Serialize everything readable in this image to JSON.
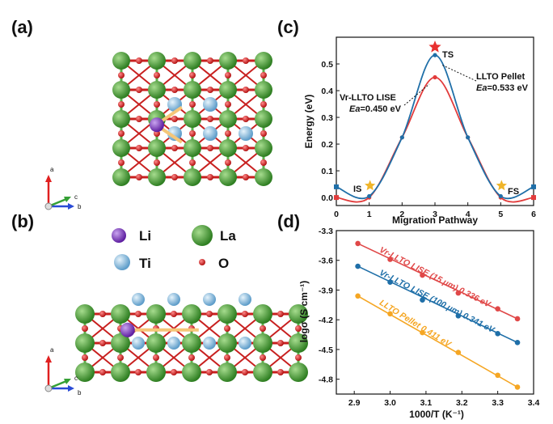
{
  "panel_labels": {
    "a": "(a)",
    "b": "(b)",
    "c": "(c)",
    "d": "(d)"
  },
  "legend": {
    "li": "Li",
    "la": "La",
    "ti": "Ti",
    "o": "O",
    "colors": {
      "li": "#7d2fc2",
      "la": "#3f9b2e",
      "ti": "#7fb8de",
      "o": "#d62222"
    }
  },
  "crystal_axes": {
    "a": "a",
    "b": "b",
    "c": "c"
  },
  "chart_data": [
    {
      "type": "line",
      "id": "c",
      "xlabel": "Migration Pathway",
      "ylabel": "Energy (eV)",
      "xlim": [
        0,
        6
      ],
      "ylim": [
        -0.03,
        0.6
      ],
      "xticks": [
        "0",
        "1",
        "2",
        "3",
        "4",
        "5",
        "6"
      ],
      "yticks": [
        "0.0",
        "0.1",
        "0.2",
        "0.3",
        "0.4",
        "0.5"
      ],
      "series": [
        {
          "name": "LLTO Pellet",
          "color": "#1f6fa8",
          "x": [
            0,
            1,
            2,
            3,
            4,
            5,
            6
          ],
          "y": [
            0.04,
            0.005,
            0.225,
            0.533,
            0.225,
            0.005,
            0.04
          ]
        },
        {
          "name": "Vr-LLTO LISE",
          "color": "#e23b3b",
          "x": [
            0,
            1,
            2,
            3,
            4,
            5,
            6
          ],
          "y": [
            0.0,
            0.0,
            0.225,
            0.45,
            0.225,
            0.0,
            0.0
          ]
        }
      ],
      "annotations": {
        "ts": "TS",
        "is": "IS",
        "fs": "FS",
        "pellet_name": "LLTO Pellet",
        "pellet_ea": "Ea=0.533 eV",
        "lise_name": "Vr-LLTO LISE",
        "lise_ea": "Ea=0.450 eV",
        "ea_prefix": "Ea",
        "pellet_ea_val": "=0.533 eV",
        "lise_ea_val": "=0.450 eV"
      }
    },
    {
      "type": "scatter",
      "id": "d",
      "xlabel": "1000/T (K⁻¹)",
      "ylabel": "logσ (S cm⁻¹)",
      "xlim": [
        2.85,
        3.4
      ],
      "ylim": [
        -4.95,
        -3.3
      ],
      "xticks": [
        "2.9",
        "3.0",
        "3.1",
        "3.2",
        "3.3",
        "3.4"
      ],
      "yticks": [
        "-3.3",
        "-3.6",
        "-3.9",
        "-4.2",
        "-4.5",
        "-4.8"
      ],
      "series": [
        {
          "name": "Vr-LLTO LISE (15 μm) 0.336 eV",
          "color": "#e04848",
          "x": [
            2.91,
            3.0,
            3.09,
            3.19,
            3.3,
            3.355
          ],
          "y": [
            -3.43,
            -3.59,
            -3.75,
            -3.93,
            -4.09,
            -4.19
          ]
        },
        {
          "name": "Vr-LLTO LISE (100 μm) 0.341 eV",
          "color": "#1f6fa8",
          "x": [
            2.91,
            3.0,
            3.09,
            3.19,
            3.3,
            3.355
          ],
          "y": [
            -3.66,
            -3.82,
            -4.0,
            -4.16,
            -4.34,
            -4.43
          ]
        },
        {
          "name": "LLTO Pellet 0.411 eV",
          "color": "#f5a623",
          "x": [
            2.91,
            3.0,
            3.09,
            3.19,
            3.3,
            3.355
          ],
          "y": [
            -3.96,
            -4.14,
            -4.33,
            -4.53,
            -4.76,
            -4.88
          ]
        }
      ]
    }
  ]
}
